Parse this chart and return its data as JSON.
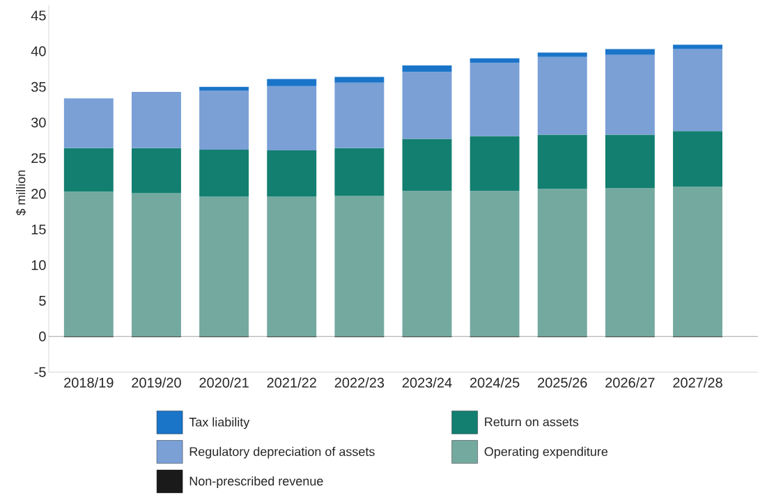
{
  "chart_data": {
    "type": "bar",
    "stacked": true,
    "ylabel": "$ million",
    "categories": [
      "2018/19",
      "2019/20",
      "2020/21",
      "2021/22",
      "2022/23",
      "2023/24",
      "2024/25",
      "2025/26",
      "2026/27",
      "2027/28"
    ],
    "series": [
      {
        "name": "Non-prescribed revenue",
        "color": "#1a1a1a",
        "values": [
          -0.1,
          -0.1,
          -0.1,
          -0.1,
          -0.1,
          -0.1,
          -0.1,
          -0.1,
          -0.1,
          -0.1
        ]
      },
      {
        "name": "Operating expenditure",
        "color": "#74a9a0",
        "values": [
          20.3,
          20.1,
          19.6,
          19.6,
          19.7,
          20.4,
          20.4,
          20.7,
          20.8,
          21.0
        ]
      },
      {
        "name": "Return on assets",
        "color": "#137f70",
        "values": [
          6.1,
          6.3,
          6.6,
          6.5,
          6.7,
          7.3,
          7.7,
          7.6,
          7.5,
          7.8
        ]
      },
      {
        "name": "Regulatory depreciation of assets",
        "color": "#7aa0d6",
        "values": [
          7.0,
          7.9,
          8.3,
          9.0,
          9.2,
          9.4,
          10.3,
          10.9,
          11.2,
          11.5
        ]
      },
      {
        "name": "Tax liability",
        "color": "#1a75c9",
        "values": [
          0,
          0,
          0.5,
          1.0,
          0.8,
          0.9,
          0.6,
          0.6,
          0.8,
          0.6
        ]
      }
    ],
    "ylim": [
      -5,
      46.5
    ],
    "yticks": [
      -5,
      0,
      5,
      10,
      15,
      20,
      25,
      30,
      35,
      40,
      45
    ],
    "ref_lines": [
      {
        "axis": "y",
        "value": 0,
        "color": "#8c8c8c"
      }
    ],
    "grid": false,
    "legend": "bottom"
  }
}
